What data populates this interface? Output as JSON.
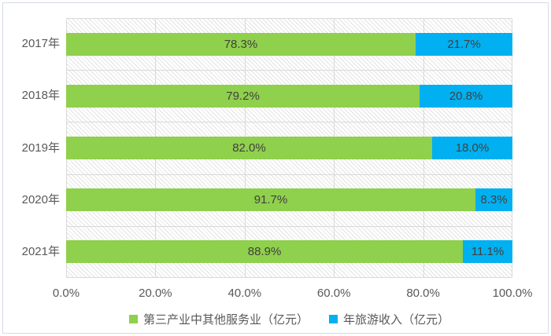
{
  "chart_data": {
    "type": "bar",
    "orientation": "horizontal",
    "stacked_percent": true,
    "categories": [
      "2017年",
      "2018年",
      "2019年",
      "2020年",
      "2021年"
    ],
    "series": [
      {
        "name": "第三产业中其他服务业（亿元）",
        "color": "#8fd04c",
        "values": [
          78.3,
          79.2,
          82.0,
          91.7,
          88.9
        ],
        "labels": [
          "78.3%",
          "79.2%",
          "82.0%",
          "91.7%",
          "88.9%"
        ]
      },
      {
        "name": "年旅游收入（亿元）",
        "color": "#00b0f0",
        "values": [
          21.7,
          20.8,
          18.0,
          8.3,
          11.1
        ],
        "labels": [
          "21.7%",
          "20.8%",
          "18.0%",
          "8.3%",
          "11.1%"
        ]
      }
    ],
    "x_axis": {
      "ticks": [
        "0.0%",
        "20.0%",
        "40.0%",
        "60.0%",
        "80.0%",
        "100.0%"
      ],
      "min": 0,
      "max": 100
    },
    "title": "",
    "legend_position": "bottom",
    "grid": true,
    "plot_background": "diagonal-hatch"
  },
  "colors": {
    "gridline": "#d9d9d9",
    "hatch_line": "#e3e3e3",
    "axis_text": "#595959",
    "data_label_text": "#404040",
    "frame_border": "#d6dbe4",
    "background": "#ffffff"
  }
}
